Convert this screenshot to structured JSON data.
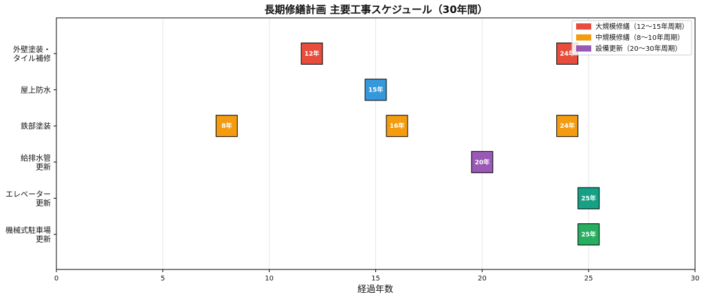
{
  "chart_data": {
    "type": "bar",
    "title": "長期修繕計画 主要工事スケジュール（30年間）",
    "xlabel": "経過年数",
    "ylabel": "",
    "xlim": [
      0,
      30
    ],
    "xticks": [
      0,
      5,
      10,
      15,
      20,
      25,
      30
    ],
    "grid": "vertical",
    "legend_position": "top-right",
    "categories": [
      [
        "外壁塗装・",
        "タイル補修"
      ],
      [
        "屋上防水"
      ],
      [
        "鉄部塗装"
      ],
      [
        "給排水管",
        "更新"
      ],
      [
        "エレベーター",
        "更新"
      ],
      [
        "機械式駐車場",
        "更新"
      ]
    ],
    "events": [
      {
        "category": 0,
        "year": 12,
        "label": "12年",
        "color": "#e74c3c"
      },
      {
        "category": 0,
        "year": 24,
        "label": "24年",
        "color": "#e74c3c"
      },
      {
        "category": 1,
        "year": 15,
        "label": "15年",
        "color": "#3498db"
      },
      {
        "category": 2,
        "year": 8,
        "label": "8年",
        "color": "#f39c12"
      },
      {
        "category": 2,
        "year": 16,
        "label": "16年",
        "color": "#f39c12"
      },
      {
        "category": 2,
        "year": 24,
        "label": "24年",
        "color": "#f39c12"
      },
      {
        "category": 3,
        "year": 20,
        "label": "20年",
        "color": "#9b59b6"
      },
      {
        "category": 4,
        "year": 25,
        "label": "25年",
        "color": "#16a085"
      },
      {
        "category": 5,
        "year": 25,
        "label": "25年",
        "color": "#27ae60"
      }
    ],
    "legend": [
      {
        "label": "大規模修繕（12〜15年周期）",
        "color": "#e74c3c"
      },
      {
        "label": "中規模修繕（8〜10年周期）",
        "color": "#f39c12"
      },
      {
        "label": "設備更新（20〜30年周期）",
        "color": "#9b59b6"
      }
    ]
  }
}
